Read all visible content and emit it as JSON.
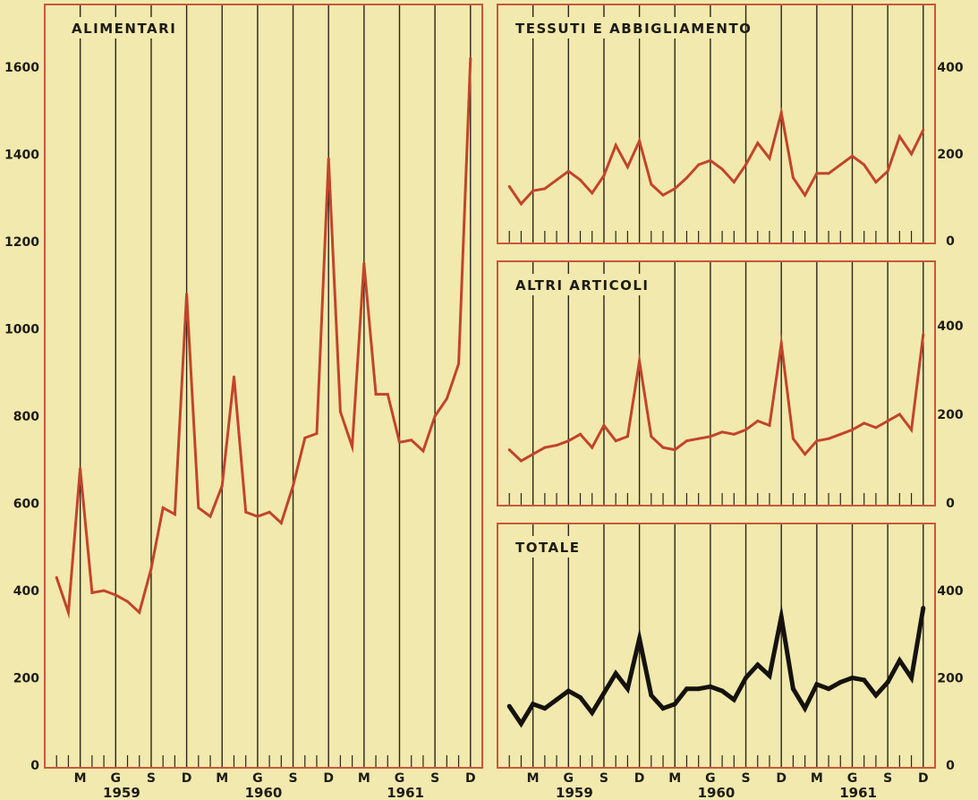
{
  "colors": {
    "background": "#f1e9ad",
    "frame": "#c9573a",
    "series_red": "#c2442b",
    "series_black": "#15120d",
    "grid": "#2a251b"
  },
  "month_labels": [
    "M",
    "G",
    "S",
    "D"
  ],
  "year_labels": [
    "1959",
    "1960",
    "1961"
  ],
  "chart_data": [
    {
      "type": "line",
      "title": "ALIMENTARI",
      "x_unit": "months Jan 1959 - Dec 1961",
      "ylim": [
        0,
        1600
      ],
      "yticks": [
        0,
        200,
        400,
        600,
        800,
        1000,
        1200,
        1400,
        1600
      ],
      "ytick_side": "left",
      "series": [
        {
          "color": "#c2442b",
          "values": [
            430,
            350,
            680,
            395,
            400,
            390,
            375,
            350,
            450,
            590,
            575,
            1080,
            590,
            570,
            640,
            890,
            580,
            570,
            580,
            555,
            640,
            750,
            760,
            1390,
            810,
            730,
            1150,
            850,
            850,
            740,
            745,
            720,
            800,
            840,
            920,
            1620
          ]
        }
      ]
    },
    {
      "type": "line",
      "title": "TESSUTI E ABBIGLIAMENTO",
      "ylim": [
        0,
        400
      ],
      "yticks": [
        0,
        200,
        400
      ],
      "ytick_side": "right",
      "series": [
        {
          "color": "#c2442b",
          "values": [
            125,
            85,
            115,
            120,
            140,
            160,
            140,
            110,
            150,
            220,
            170,
            230,
            130,
            105,
            120,
            145,
            175,
            185,
            165,
            135,
            175,
            225,
            190,
            295,
            145,
            105,
            155,
            155,
            175,
            195,
            175,
            135,
            160,
            240,
            200,
            255
          ]
        }
      ]
    },
    {
      "type": "line",
      "title": "ALTRI ARTICOLI",
      "ylim": [
        0,
        400
      ],
      "yticks": [
        0,
        200,
        400
      ],
      "ytick_side": "right",
      "series": [
        {
          "color": "#c2442b",
          "values": [
            120,
            95,
            110,
            125,
            130,
            140,
            155,
            125,
            175,
            140,
            150,
            320,
            150,
            125,
            120,
            140,
            145,
            150,
            160,
            155,
            165,
            185,
            175,
            360,
            145,
            110,
            140,
            145,
            155,
            165,
            180,
            170,
            185,
            200,
            165,
            380
          ]
        }
      ]
    },
    {
      "type": "line",
      "title": "TOTALE",
      "ylim": [
        0,
        400
      ],
      "yticks": [
        0,
        200,
        400
      ],
      "ytick_side": "right",
      "series": [
        {
          "color": "#15120d",
          "values": [
            135,
            95,
            140,
            130,
            150,
            170,
            155,
            120,
            165,
            210,
            175,
            290,
            160,
            130,
            140,
            175,
            175,
            180,
            170,
            150,
            200,
            230,
            205,
            340,
            175,
            130,
            185,
            175,
            190,
            200,
            195,
            160,
            190,
            240,
            200,
            360
          ]
        }
      ]
    }
  ]
}
